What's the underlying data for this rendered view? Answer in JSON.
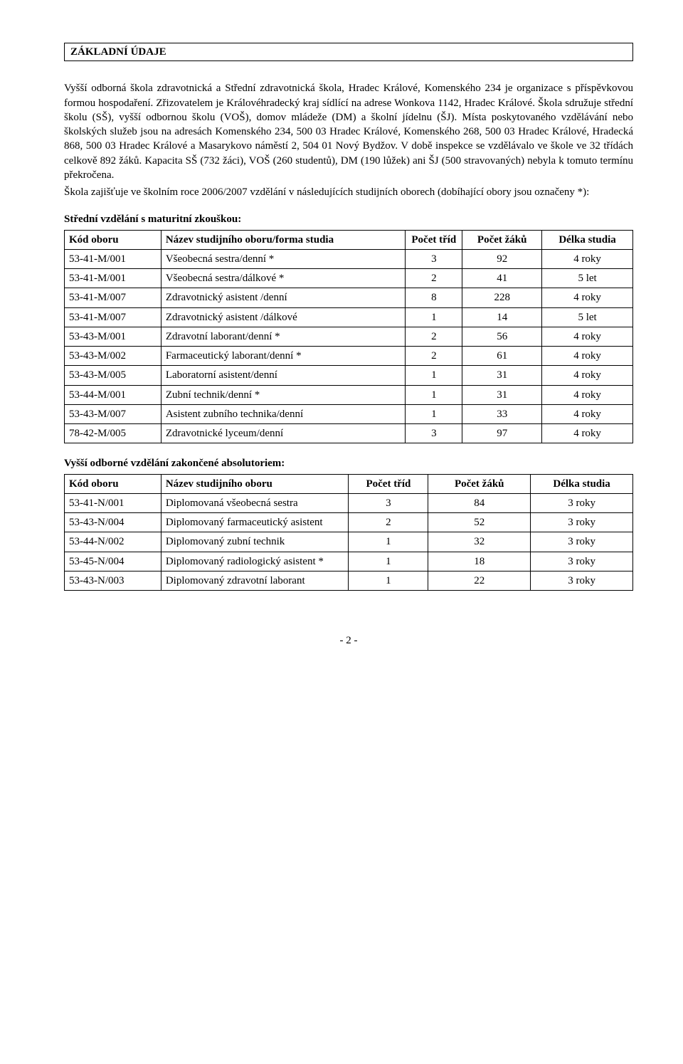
{
  "section_title": "ZÁKLADNÍ ÚDAJE",
  "para1": "Vyšší odborná škola zdravotnická a Střední zdravotnická škola, Hradec Králové, Komenského 234 je organizace s příspěvkovou formou hospodaření. Zřizovatelem je Královéhradecký kraj sídlící na adrese Wonkova 1142, Hradec Králové. Škola sdružuje střední školu (SŠ), vyšší odbornou školu (VOŠ), domov mládeže (DM) a školní jídelnu (ŠJ). Místa poskytovaného vzdělávání nebo školských služeb jsou na adresách Komenského 234, 500 03 Hradec Králové, Komenského 268, 500 03 Hradec Králové, Hradecká 868, 500 03 Hradec Králové a  Masarykovo náměstí 2, 504 01 Nový Bydžov. V době inspekce se vzdělávalo ve škole ve 32 třídách celkově 892 žáků. Kapacita SŠ (732 žáci), VOŠ (260 studentů), DM (190 lůžek) ani ŠJ (500 stravovaných) nebyla k tomuto termínu překročena.",
  "para2": "Škola zajišťuje ve školním roce 2006/2007 vzdělání v následujících studijních oborech (dobíhající obory jsou označeny *):",
  "table1": {
    "heading": "Střední vzdělání s maturitní zkouškou:",
    "columns": [
      "Kód oboru",
      "Název studijního oboru/forma studia",
      "Počet tříd",
      "Počet žáků",
      "Délka studia"
    ],
    "col_widths": [
      "17%",
      "43%",
      "10%",
      "14%",
      "16%"
    ],
    "rows": [
      [
        "53-41-M/001",
        "Všeobecná sestra/denní *",
        "3",
        "92",
        "4 roky"
      ],
      [
        "53-41-M/001",
        "Všeobecná sestra/dálkové *",
        "2",
        "41",
        "5 let"
      ],
      [
        "53-41-M/007",
        "Zdravotnický asistent /denní",
        "8",
        "228",
        "4 roky"
      ],
      [
        "53-41-M/007",
        "Zdravotnický asistent /dálkové",
        "1",
        "14",
        "5 let"
      ],
      [
        "53-43-M/001",
        "Zdravotní laborant/denní *",
        "2",
        "56",
        "4 roky"
      ],
      [
        "53-43-M/002",
        "Farmaceutický laborant/denní *",
        "2",
        "61",
        "4 roky"
      ],
      [
        "53-43-M/005",
        "Laboratorní asistent/denní",
        "1",
        "31",
        "4 roky"
      ],
      [
        "53-44-M/001",
        "Zubní technik/denní *",
        "1",
        "31",
        "4 roky"
      ],
      [
        "53-43-M/007",
        "Asistent zubního technika/denní",
        "1",
        "33",
        "4 roky"
      ],
      [
        "78-42-M/005",
        "Zdravotnické lyceum/denní",
        "3",
        "97",
        "4 roky"
      ]
    ]
  },
  "table2": {
    "heading": "Vyšší odborné vzdělání zakončené absolutoriem:",
    "columns": [
      "Kód oboru",
      "Název studijního oboru",
      "Počet tříd",
      "Počet žáků",
      "Délka studia"
    ],
    "col_widths": [
      "17%",
      "33%",
      "14%",
      "18%",
      "18%"
    ],
    "rows": [
      [
        "53-41-N/001",
        "Diplomovaná všeobecná sestra",
        "3",
        "84",
        "3 roky"
      ],
      [
        "53-43-N/004",
        "Diplomovaný farmaceutický asistent",
        "2",
        "52",
        "3 roky"
      ],
      [
        "53-44-N/002",
        "Diplomovaný zubní technik",
        "1",
        "32",
        "3 roky"
      ],
      [
        "53-45-N/004",
        "Diplomovaný radiologický asistent *",
        "1",
        "18",
        "3 roky"
      ],
      [
        "53-43-N/003",
        "Diplomovaný zdravotní laborant",
        "1",
        "22",
        "3 roky"
      ]
    ]
  },
  "page_number": "- 2 -"
}
